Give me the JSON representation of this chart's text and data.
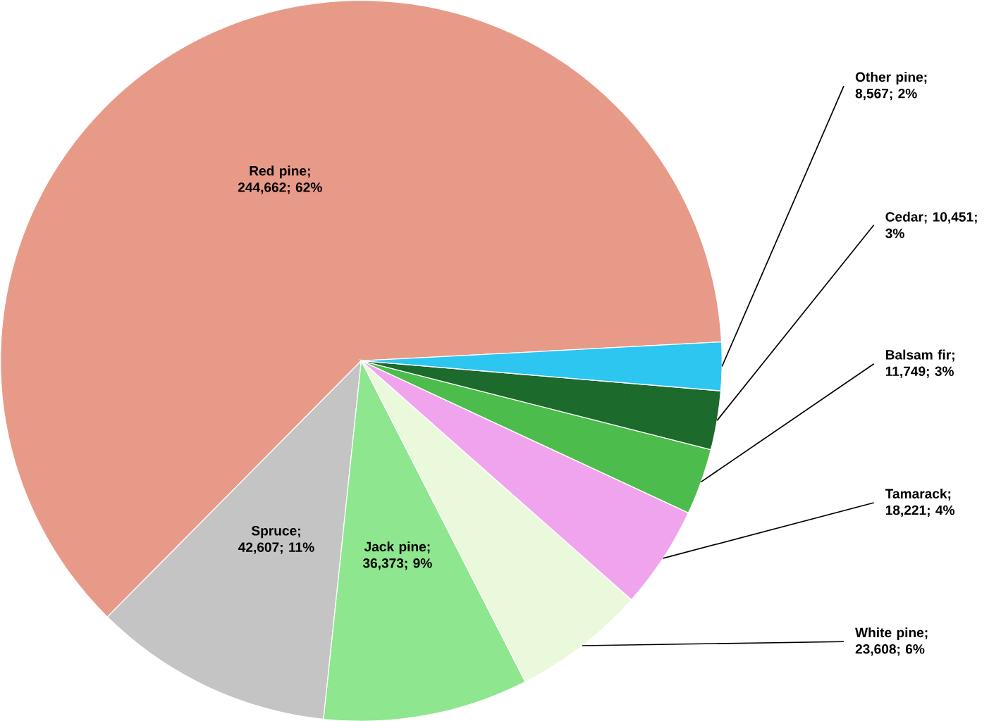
{
  "chart_data": {
    "type": "pie",
    "categories": [
      "Red pine",
      "Spruce",
      "Jack pine",
      "White pine",
      "Tamarack",
      "Balsam fir",
      "Cedar",
      "Other pine"
    ],
    "values": [
      244662,
      42607,
      36373,
      23608,
      18221,
      11749,
      10451,
      8567
    ],
    "value_labels": [
      "; 244,662; 62%",
      "; 42,607; 11%",
      "; 36,373; 9%",
      "; 23,608; 6%",
      "; 18,221; 4%",
      "; 11,749; 3%",
      "; 10,451; 3%",
      "; 8,567; 2%"
    ],
    "colors": [
      "#e89a88",
      "#c4c4c4",
      "#8ee68e",
      "#eaf8dc",
      "#f0a4ee",
      "#4cbc4c",
      "#1c6a2c",
      "#2cc6f0"
    ]
  }
}
